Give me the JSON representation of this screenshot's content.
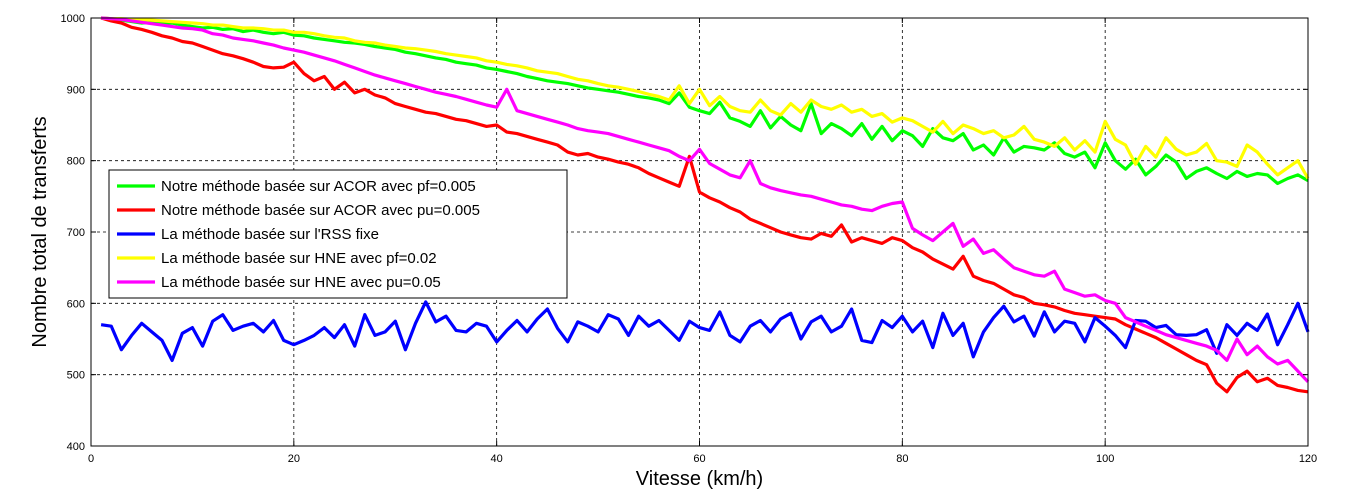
{
  "chart_data": {
    "type": "line",
    "title": "",
    "xlabel": "Vitesse (km/h)",
    "ylabel": "Nombre total de transferts",
    "xlim": [
      0,
      120
    ],
    "ylim": [
      400,
      1000
    ],
    "xticks": [
      "0",
      "20",
      "40",
      "60",
      "80",
      "100",
      "120"
    ],
    "yticks": [
      "400",
      "500",
      "600",
      "700",
      "800",
      "900",
      "1000"
    ],
    "grid": true,
    "legend_position": "middle-left",
    "x": [
      1,
      2,
      3,
      4,
      5,
      6,
      7,
      8,
      9,
      10,
      11,
      12,
      13,
      14,
      15,
      16,
      17,
      18,
      19,
      20,
      21,
      22,
      23,
      24,
      25,
      26,
      27,
      28,
      29,
      30,
      31,
      32,
      33,
      34,
      35,
      36,
      37,
      38,
      39,
      40,
      41,
      42,
      43,
      44,
      45,
      46,
      47,
      48,
      49,
      50,
      51,
      52,
      53,
      54,
      55,
      56,
      57,
      58,
      59,
      60,
      61,
      62,
      63,
      64,
      65,
      66,
      67,
      68,
      69,
      70,
      71,
      72,
      73,
      74,
      75,
      76,
      77,
      78,
      79,
      80,
      81,
      82,
      83,
      84,
      85,
      86,
      87,
      88,
      89,
      90,
      91,
      92,
      93,
      94,
      95,
      96,
      97,
      98,
      99,
      100,
      101,
      102,
      103,
      104,
      105,
      106,
      107,
      108,
      109,
      110,
      111,
      112,
      113,
      114,
      115,
      116,
      117,
      118,
      119,
      120
    ],
    "series": [
      {
        "name": "Notre méthode basée sur ACOR avec pf=0.005",
        "color": "#00ff00",
        "values": [
          1000,
          999,
          997,
          995,
          993,
          994,
          992,
          993,
          990,
          988,
          986,
          987,
          984,
          985,
          981,
          983,
          980,
          978,
          980,
          976,
          975,
          972,
          970,
          968,
          966,
          965,
          963,
          960,
          958,
          956,
          952,
          950,
          947,
          944,
          942,
          938,
          936,
          934,
          930,
          928,
          925,
          922,
          918,
          915,
          912,
          910,
          908,
          905,
          902,
          900,
          898,
          896,
          893,
          890,
          888,
          885,
          880,
          895,
          875,
          870,
          866,
          882,
          860,
          855,
          848,
          870,
          846,
          862,
          850,
          842,
          880,
          838,
          852,
          845,
          835,
          852,
          830,
          848,
          828,
          842,
          835,
          820,
          845,
          832,
          828,
          838,
          815,
          822,
          808,
          832,
          812,
          820,
          818,
          815,
          825,
          810,
          805,
          812,
          790,
          825,
          800,
          788,
          802,
          780,
          792,
          808,
          798,
          775,
          785,
          790,
          782,
          775,
          785,
          778,
          782,
          780,
          768,
          775,
          780,
          772
        ]
      },
      {
        "name": "Notre méthode basée sur ACOR avec pu=0.005",
        "color": "#ff0000",
        "values": [
          1000,
          996,
          993,
          987,
          984,
          980,
          975,
          972,
          967,
          965,
          960,
          955,
          950,
          947,
          943,
          938,
          932,
          930,
          931,
          938,
          922,
          912,
          918,
          900,
          910,
          895,
          900,
          892,
          888,
          880,
          876,
          872,
          868,
          866,
          862,
          858,
          856,
          852,
          848,
          850,
          840,
          838,
          834,
          830,
          826,
          822,
          812,
          808,
          810,
          805,
          802,
          798,
          795,
          790,
          782,
          776,
          770,
          764,
          806,
          756,
          748,
          742,
          734,
          728,
          718,
          712,
          706,
          700,
          696,
          692,
          690,
          698,
          694,
          710,
          686,
          692,
          688,
          684,
          692,
          688,
          678,
          672,
          662,
          655,
          648,
          666,
          638,
          632,
          628,
          620,
          612,
          608,
          600,
          598,
          595,
          590,
          586,
          584,
          582,
          580,
          578,
          570,
          564,
          558,
          552,
          544,
          536,
          528,
          520,
          514,
          488,
          476,
          496,
          505,
          490,
          495,
          485,
          482,
          478,
          476
        ]
      },
      {
        "name": "La méthode basée sur l'RSS fixe",
        "color": "#0000ff",
        "values": [
          570,
          568,
          535,
          555,
          572,
          560,
          548,
          520,
          558,
          566,
          540,
          575,
          584,
          562,
          568,
          572,
          560,
          576,
          548,
          542,
          548,
          555,
          566,
          552,
          570,
          540,
          584,
          555,
          560,
          575,
          535,
          572,
          602,
          574,
          582,
          562,
          560,
          572,
          568,
          546,
          562,
          576,
          560,
          578,
          592,
          565,
          546,
          574,
          568,
          560,
          584,
          578,
          555,
          582,
          568,
          576,
          562,
          548,
          575,
          566,
          562,
          588,
          555,
          546,
          568,
          576,
          560,
          578,
          586,
          550,
          574,
          582,
          560,
          568,
          592,
          548,
          545,
          576,
          566,
          582,
          560,
          575,
          538,
          586,
          555,
          572,
          525,
          560,
          580,
          596,
          574,
          582,
          554,
          588,
          560,
          575,
          572,
          546,
          580,
          568,
          555,
          538,
          576,
          575,
          566,
          569,
          556,
          555,
          556,
          563,
          530,
          570,
          555,
          572,
          562,
          585,
          542,
          570,
          600,
          560
        ]
      },
      {
        "name": "La méthode basée sur HNE avec pf=0.02",
        "color": "#ffff00",
        "values": [
          1000,
          999,
          999,
          998,
          998,
          997,
          996,
          995,
          994,
          993,
          992,
          990,
          990,
          988,
          986,
          986,
          985,
          983,
          983,
          980,
          980,
          978,
          975,
          973,
          972,
          968,
          966,
          965,
          962,
          960,
          958,
          957,
          955,
          953,
          950,
          948,
          946,
          944,
          940,
          938,
          935,
          933,
          930,
          926,
          924,
          922,
          918,
          914,
          912,
          908,
          905,
          903,
          900,
          897,
          893,
          890,
          885,
          905,
          880,
          900,
          877,
          890,
          876,
          870,
          868,
          885,
          870,
          864,
          880,
          868,
          885,
          876,
          872,
          878,
          868,
          872,
          862,
          866,
          854,
          860,
          856,
          848,
          840,
          855,
          838,
          850,
          845,
          838,
          842,
          832,
          836,
          848,
          830,
          826,
          820,
          832,
          815,
          828,
          812,
          855,
          830,
          822,
          795,
          820,
          805,
          832,
          816,
          808,
          812,
          824,
          800,
          798,
          792,
          822,
          812,
          795,
          780,
          790,
          800,
          775
        ]
      },
      {
        "name": "La méthode basée sur HNE avec pu=0.05",
        "color": "#ff00ff",
        "values": [
          1000,
          999,
          998,
          996,
          994,
          992,
          990,
          988,
          986,
          985,
          983,
          978,
          976,
          972,
          970,
          968,
          965,
          962,
          958,
          955,
          952,
          948,
          944,
          940,
          935,
          930,
          925,
          920,
          916,
          912,
          908,
          904,
          900,
          896,
          893,
          890,
          886,
          882,
          878,
          875,
          900,
          870,
          866,
          862,
          858,
          854,
          850,
          845,
          842,
          840,
          838,
          834,
          830,
          826,
          822,
          818,
          814,
          806,
          800,
          816,
          796,
          788,
          780,
          776,
          800,
          768,
          762,
          758,
          755,
          752,
          750,
          746,
          742,
          738,
          736,
          732,
          730,
          736,
          740,
          742,
          705,
          696,
          688,
          700,
          712,
          680,
          690,
          670,
          675,
          662,
          650,
          645,
          640,
          638,
          645,
          620,
          615,
          610,
          612,
          604,
          600,
          580,
          574,
          568,
          562,
          556,
          552,
          548,
          544,
          540,
          534,
          520,
          550,
          528,
          540,
          525,
          515,
          520,
          505,
          490
        ]
      }
    ]
  }
}
